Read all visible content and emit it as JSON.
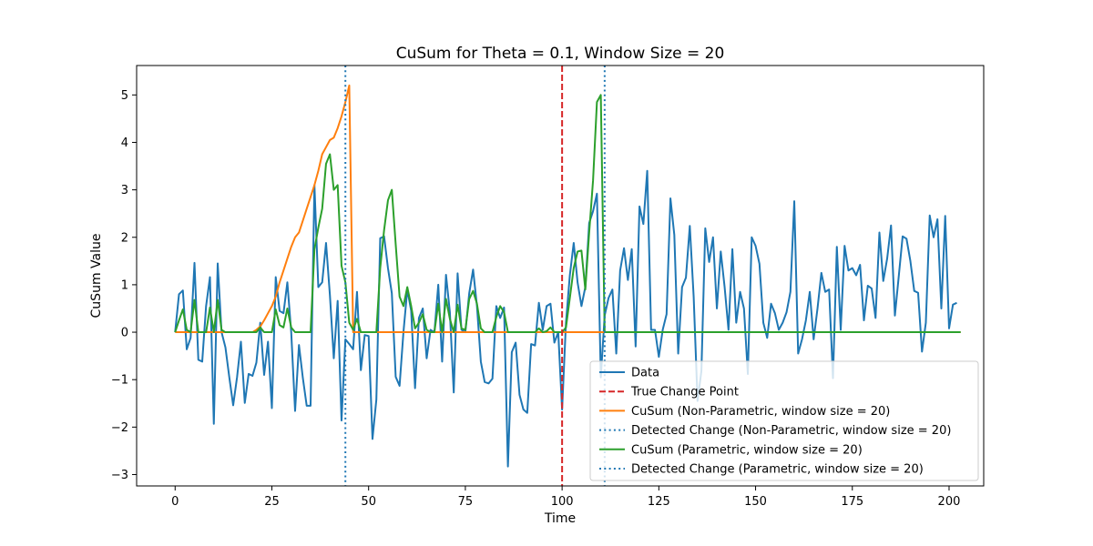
{
  "chart_data": {
    "type": "line",
    "title": "CuSum for Theta = 0.1, Window Size = 20",
    "xlabel": "Time",
    "ylabel": "CuSum Value",
    "xlim": [
      -9.95,
      208.95
    ],
    "ylim": [
      -3.24,
      5.62
    ],
    "xticks": [
      0,
      25,
      50,
      75,
      100,
      125,
      150,
      175,
      200
    ],
    "yticks": [
      -3,
      -2,
      -1,
      0,
      1,
      2,
      3,
      4,
      5
    ],
    "grid": false,
    "legend_position": "lower-right",
    "series": [
      {
        "name": "Data",
        "style": "solid",
        "color": "#1f77b4",
        "values": [
          0.0,
          0.8,
          0.88,
          -0.36,
          -0.12,
          1.46,
          -0.58,
          -0.62,
          0.55,
          1.16,
          -1.93,
          1.45,
          0.0,
          -0.32,
          -0.95,
          -1.54,
          -0.95,
          -0.2,
          -1.49,
          -0.88,
          -0.92,
          -0.64,
          0.2,
          -0.9,
          -0.2,
          -1.6,
          1.16,
          0.45,
          0.4,
          1.05,
          0.0,
          -1.66,
          -0.27,
          -0.96,
          -1.55,
          -1.55,
          3.1,
          0.95,
          1.05,
          1.88,
          0.78,
          -0.55,
          0.66,
          -1.86,
          -0.15,
          -0.25,
          -0.36,
          0.85,
          -0.8,
          -0.06,
          -0.08,
          -2.25,
          -1.42,
          1.98,
          2.02,
          1.35,
          0.82,
          -0.94,
          -1.13,
          0.0,
          0.9,
          0.45,
          -1.18,
          0.3,
          0.5,
          -0.55,
          0.05,
          0.0,
          1.0,
          -0.62,
          1.21,
          0.42,
          -1.27,
          1.24,
          0.05,
          0.0,
          0.82,
          1.32,
          0.55,
          -0.62,
          -1.05,
          -1.08,
          -0.98,
          0.55,
          0.3,
          0.52,
          -2.83,
          -0.42,
          -0.22,
          -1.32,
          -1.63,
          -1.7,
          -0.25,
          -0.28,
          0.62,
          0.05,
          0.55,
          0.6,
          -0.22,
          0.0,
          -1.63,
          0.2,
          1.2,
          1.88,
          1.05,
          0.55,
          0.95,
          2.3,
          2.55,
          2.92,
          -0.95,
          0.35,
          0.72,
          0.9,
          -0.45,
          1.3,
          1.77,
          1.1,
          1.75,
          -0.3,
          2.65,
          2.28,
          3.4,
          0.05,
          0.05,
          -0.52,
          0.05,
          0.38,
          2.82,
          2.05,
          -0.45,
          0.95,
          1.15,
          2.24,
          0.75,
          -1.45,
          -0.82,
          2.19,
          1.48,
          2.0,
          0.5,
          1.7,
          0.95,
          0.05,
          1.75,
          0.2,
          0.85,
          0.5,
          -0.88,
          2.0,
          1.82,
          1.44,
          0.2,
          -0.12,
          0.6,
          0.4,
          0.05,
          0.2,
          0.42,
          0.85,
          2.76,
          -0.45,
          -0.15,
          0.25,
          0.85,
          -0.15,
          0.5,
          1.25,
          0.85,
          0.9,
          -0.97,
          1.8,
          0.05,
          1.82,
          1.3,
          1.35,
          1.2,
          1.42,
          0.25,
          0.98,
          0.92,
          0.3,
          2.1,
          1.08,
          1.55,
          2.25,
          0.35,
          1.18,
          2.02,
          1.97,
          1.5,
          0.87,
          0.83,
          -0.41,
          0.2,
          2.46,
          2.0,
          2.38,
          0.5,
          2.45,
          0.08,
          0.58,
          0.62
        ]
      },
      {
        "name": "True Change Point",
        "style": "dashed-vertical",
        "color": "#d62728",
        "x": 100
      },
      {
        "name": "CuSum (Non-Parametric, window size = 20)",
        "style": "solid",
        "color": "#ff7f0e",
        "values": [
          0,
          0,
          0,
          0,
          0,
          0,
          0,
          0,
          0,
          0,
          0,
          0,
          0,
          0,
          0,
          0,
          0,
          0,
          0,
          0,
          0,
          0.05,
          0.12,
          0.25,
          0.4,
          0.55,
          0.75,
          1.05,
          1.3,
          1.55,
          1.8,
          2.0,
          2.1,
          2.35,
          2.6,
          2.85,
          3.1,
          3.4,
          3.75,
          3.9,
          4.05,
          4.1,
          4.3,
          4.55,
          4.85,
          5.2,
          0,
          0,
          0,
          0,
          0,
          0,
          0,
          0,
          0,
          0,
          0,
          0,
          0,
          0,
          0,
          0,
          0,
          0,
          0,
          0,
          0,
          0,
          0,
          0,
          0,
          0,
          0,
          0,
          0,
          0,
          0,
          0,
          0,
          0,
          0,
          0,
          0,
          0,
          0,
          0,
          0,
          0,
          0,
          0,
          0,
          0,
          0,
          0,
          0,
          0,
          0,
          0,
          0,
          0,
          0,
          0,
          0,
          0,
          0,
          0,
          0,
          0,
          0,
          0,
          0,
          0,
          0,
          0,
          0,
          0,
          0,
          0,
          0,
          0,
          0,
          0,
          0,
          0,
          0,
          0,
          0,
          0,
          0,
          0,
          0,
          0,
          0,
          0,
          0,
          0,
          0,
          0,
          0,
          0,
          0,
          0,
          0,
          0,
          0,
          0,
          0,
          0,
          0,
          0,
          0,
          0,
          0,
          0,
          0,
          0,
          0,
          0,
          0,
          0,
          0,
          0,
          0,
          0,
          0,
          0,
          0,
          0,
          0,
          0,
          0,
          0,
          0,
          0,
          0,
          0,
          0,
          0,
          0,
          0,
          0,
          0,
          0,
          0,
          0,
          0,
          0,
          0,
          0,
          0,
          0,
          0,
          0,
          0,
          0,
          0,
          0,
          0,
          0,
          0,
          0,
          0,
          0,
          0
        ]
      },
      {
        "name": "Detected Change (Non-Parametric, window size = 20)",
        "style": "dotted-vertical",
        "color": "#1f77b4",
        "x": 44
      },
      {
        "name": "CuSum (Parametric, window size = 20)",
        "style": "solid",
        "color": "#2ca02c",
        "values": [
          0,
          0.25,
          0.48,
          0.05,
          0.0,
          0.68,
          0.0,
          0.0,
          0.0,
          0.52,
          0.0,
          0.68,
          0.05,
          0,
          0,
          0,
          0,
          0,
          0,
          0,
          0,
          0,
          0.1,
          0,
          0,
          0,
          0.48,
          0.15,
          0.1,
          0.5,
          0.1,
          0,
          0,
          0,
          0,
          0,
          1.75,
          2.2,
          2.6,
          3.55,
          3.75,
          3.0,
          3.1,
          1.4,
          1.05,
          0.2,
          0.05,
          0.28,
          0.0,
          0,
          0,
          0,
          0,
          1.35,
          2.15,
          2.78,
          3.0,
          1.85,
          0.75,
          0.55,
          0.95,
          0.55,
          0.08,
          0.2,
          0.38,
          0.05,
          0,
          0,
          0.6,
          0,
          0.7,
          0.28,
          0,
          0.58,
          0.08,
          0.05,
          0.7,
          0.87,
          0.6,
          0.08,
          0,
          0,
          0,
          0.32,
          0.55,
          0.42,
          0,
          0,
          0,
          0,
          0,
          0,
          0,
          0,
          0.08,
          0,
          0.02,
          0.1,
          0,
          0,
          0,
          0.1,
          0.72,
          1.35,
          1.7,
          1.72,
          0.9,
          2.1,
          3.2,
          4.85,
          5.0,
          0.0,
          0,
          0,
          0,
          0,
          0,
          0,
          0,
          0,
          0,
          0,
          0,
          0,
          0,
          0,
          0,
          0,
          0,
          0,
          0,
          0,
          0,
          0,
          0,
          0,
          0,
          0,
          0,
          0,
          0,
          0,
          0,
          0,
          0,
          0,
          0,
          0,
          0,
          0,
          0,
          0,
          0,
          0,
          0,
          0,
          0,
          0,
          0,
          0,
          0,
          0,
          0,
          0,
          0,
          0,
          0,
          0,
          0,
          0,
          0,
          0,
          0,
          0,
          0,
          0,
          0,
          0,
          0,
          0,
          0,
          0,
          0,
          0,
          0,
          0,
          0,
          0,
          0,
          0,
          0,
          0,
          0,
          0,
          0,
          0,
          0,
          0,
          0,
          0,
          0,
          0,
          0,
          0
        ]
      },
      {
        "name": "Detected Change (Parametric, window size = 20)",
        "style": "dotted-vertical",
        "color": "#1f77b4",
        "x": 111
      }
    ]
  }
}
